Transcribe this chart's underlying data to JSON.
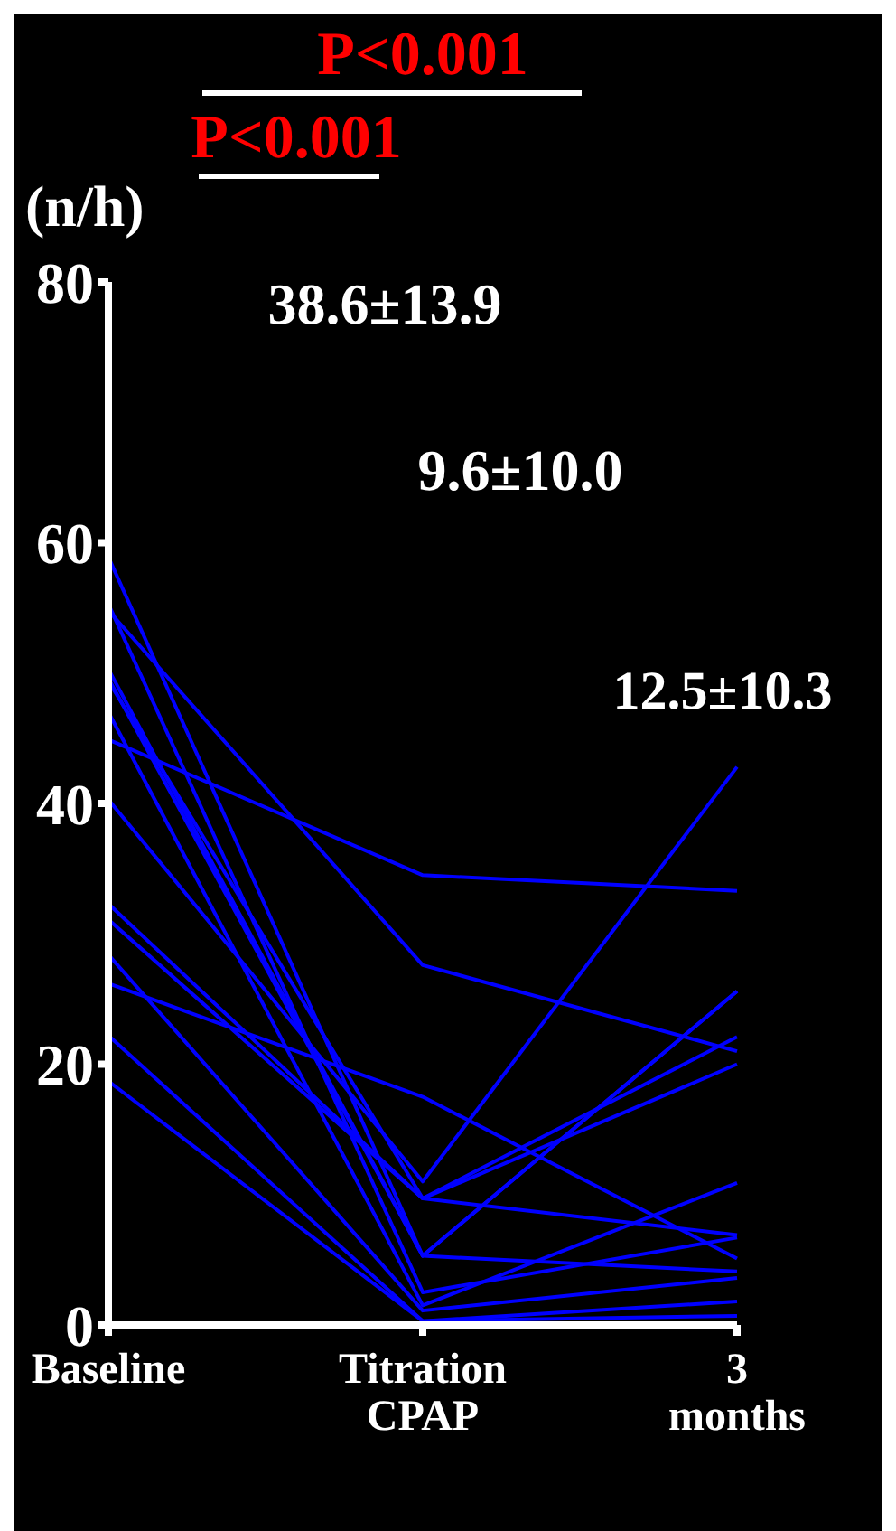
{
  "chart_data": {
    "type": "line",
    "ylabel": "(n/h)",
    "categories": [
      "Baseline",
      "Titration CPAP",
      "3 months"
    ],
    "ylim": [
      0,
      80
    ],
    "yticks": [
      0,
      20,
      40,
      60,
      80
    ],
    "grid": false,
    "legend": false,
    "marker": "none",
    "series": [
      {
        "color": "#0000ff",
        "values": [
          44.9,
          34.5,
          33.3
        ]
      },
      {
        "color": "#0000ff",
        "values": [
          54.8,
          27.6,
          21.0
        ]
      },
      {
        "color": "#0000ff",
        "values": [
          26.2,
          17.5,
          5.1
        ]
      },
      {
        "color": "#0000ff",
        "values": [
          40.3,
          11.0,
          42.8
        ]
      },
      {
        "color": "#0000ff",
        "values": [
          32.3,
          9.7,
          22.1
        ]
      },
      {
        "color": "#0000ff",
        "values": [
          31.1,
          9.7,
          20.0
        ]
      },
      {
        "color": "#0000ff",
        "values": [
          49.4,
          9.7,
          6.9
        ]
      },
      {
        "color": "#0000ff",
        "values": [
          58.9,
          5.3,
          25.6
        ]
      },
      {
        "color": "#0000ff",
        "values": [
          50.3,
          5.3,
          25.6
        ]
      },
      {
        "color": "#0000ff",
        "values": [
          49.6,
          5.3,
          4.1
        ]
      },
      {
        "color": "#0000ff",
        "values": [
          55.3,
          2.5,
          6.7
        ]
      },
      {
        "color": "#0000ff",
        "values": [
          47.0,
          1.5,
          10.9
        ]
      },
      {
        "color": "#0000ff",
        "values": [
          28.4,
          1.1,
          3.6
        ]
      },
      {
        "color": "#0000ff",
        "values": [
          22.2,
          0.3,
          1.8
        ]
      },
      {
        "color": "#0000ff",
        "values": [
          18.7,
          0.3,
          0.7
        ]
      }
    ],
    "annotations": [
      "P<0.001",
      "P<0.001",
      "38.6±13.9",
      "9.6±10.0",
      "12.5±10.3"
    ]
  }
}
